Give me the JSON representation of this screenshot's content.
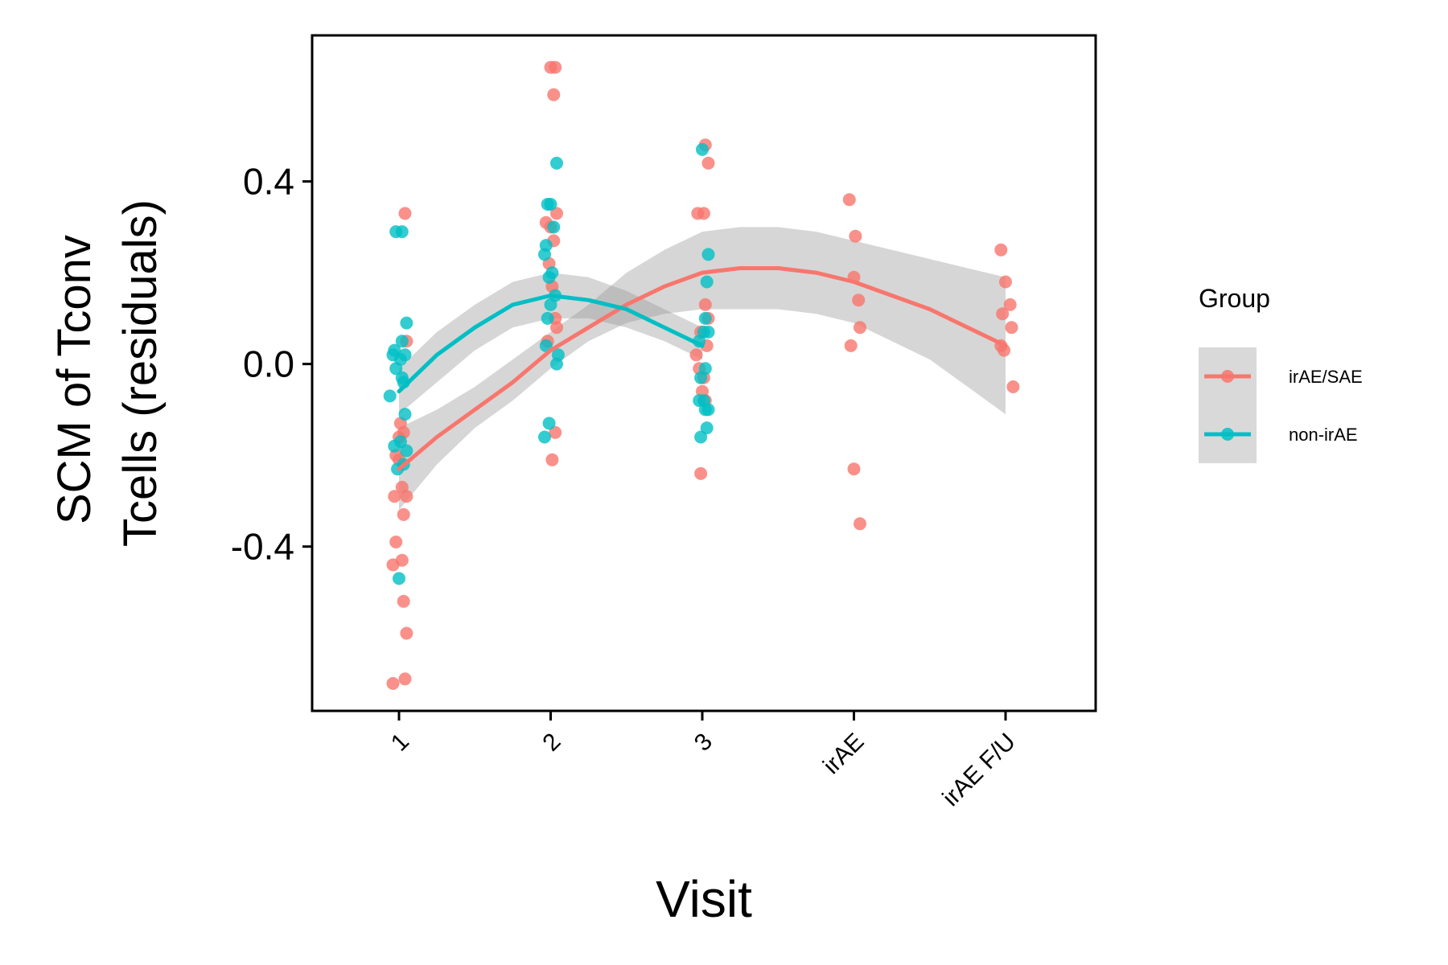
{
  "chart_data": {
    "type": "scatter",
    "title": "",
    "xlabel": "Visit",
    "ylabel_lines": [
      "SCM of Tconv",
      "Tcells (residuals)"
    ],
    "categories": [
      "1",
      "2",
      "3",
      "irAE",
      "irAE F/U"
    ],
    "ylim": [
      -0.76,
      0.72
    ],
    "yticks": [
      -0.4,
      0.0,
      0.4
    ],
    "ytick_labels": [
      "-0.4",
      "0.0",
      "0.4"
    ],
    "grid": false,
    "legend": {
      "title": "Group",
      "position": "right"
    },
    "series": [
      {
        "name": "irAE/SAE",
        "color": "#F8766D",
        "points": [
          [
            0.96,
            -0.7
          ],
          [
            1.04,
            -0.69
          ],
          [
            1.05,
            -0.59
          ],
          [
            1.03,
            -0.52
          ],
          [
            0.96,
            -0.44
          ],
          [
            1.02,
            -0.43
          ],
          [
            0.98,
            -0.39
          ],
          [
            1.03,
            -0.33
          ],
          [
            1.05,
            -0.29
          ],
          [
            0.97,
            -0.29
          ],
          [
            1.02,
            -0.27
          ],
          [
            0.98,
            -0.2
          ],
          [
            1.0,
            -0.16
          ],
          [
            1.03,
            -0.15
          ],
          [
            1.01,
            -0.13
          ],
          [
            1.0,
            -0.21
          ],
          [
            1.04,
            0.33
          ],
          [
            1.05,
            0.05
          ],
          [
            2.0,
            0.65
          ],
          [
            2.03,
            0.65
          ],
          [
            2.02,
            0.59
          ],
          [
            2.04,
            0.33
          ],
          [
            1.97,
            0.31
          ],
          [
            2.0,
            0.3
          ],
          [
            2.02,
            0.27
          ],
          [
            1.99,
            0.22
          ],
          [
            2.01,
            0.17
          ],
          [
            2.03,
            0.1
          ],
          [
            2.04,
            0.08
          ],
          [
            1.98,
            0.05
          ],
          [
            2.03,
            -0.15
          ],
          [
            2.01,
            -0.21
          ],
          [
            3.02,
            0.48
          ],
          [
            3.04,
            0.44
          ],
          [
            2.97,
            0.33
          ],
          [
            3.01,
            0.33
          ],
          [
            3.02,
            0.13
          ],
          [
            3.04,
            0.1
          ],
          [
            2.99,
            0.07
          ],
          [
            3.03,
            0.04
          ],
          [
            2.96,
            0.02
          ],
          [
            2.98,
            -0.01
          ],
          [
            3.01,
            -0.03
          ],
          [
            3.0,
            -0.06
          ],
          [
            3.02,
            -0.08
          ],
          [
            2.99,
            -0.24
          ],
          [
            3.97,
            0.36
          ],
          [
            4.01,
            0.28
          ],
          [
            4.0,
            0.19
          ],
          [
            4.03,
            0.14
          ],
          [
            4.04,
            0.08
          ],
          [
            3.98,
            0.04
          ],
          [
            4.0,
            -0.23
          ],
          [
            4.04,
            -0.35
          ],
          [
            4.97,
            0.25
          ],
          [
            5.0,
            0.18
          ],
          [
            5.03,
            0.13
          ],
          [
            4.98,
            0.11
          ],
          [
            5.04,
            0.08
          ],
          [
            4.97,
            0.04
          ],
          [
            4.99,
            0.03
          ],
          [
            5.05,
            -0.05
          ]
        ],
        "trend_x": [
          1.0,
          1.25,
          1.5,
          1.75,
          2.0,
          2.25,
          2.5,
          2.75,
          3.0,
          3.25,
          3.5,
          3.75,
          4.0,
          4.25,
          4.5,
          4.75,
          5.0
        ],
        "trend_y": [
          -0.23,
          -0.16,
          -0.1,
          -0.04,
          0.03,
          0.08,
          0.13,
          0.17,
          0.2,
          0.21,
          0.21,
          0.2,
          0.18,
          0.15,
          0.12,
          0.08,
          0.04
        ],
        "band_low": [
          -0.32,
          -0.22,
          -0.14,
          -0.08,
          -0.01,
          0.05,
          0.09,
          0.11,
          0.12,
          0.12,
          0.12,
          0.11,
          0.09,
          0.05,
          0.01,
          -0.05,
          -0.11
        ],
        "band_high": [
          -0.14,
          -0.1,
          -0.05,
          0.01,
          0.07,
          0.13,
          0.2,
          0.25,
          0.29,
          0.3,
          0.3,
          0.29,
          0.27,
          0.25,
          0.23,
          0.21,
          0.19
        ]
      },
      {
        "name": "non-irAE",
        "color": "#00BFC4",
        "points": [
          [
            0.98,
            0.29
          ],
          [
            1.02,
            0.29
          ],
          [
            1.05,
            0.09
          ],
          [
            1.02,
            0.05
          ],
          [
            0.97,
            0.03
          ],
          [
            0.96,
            0.02
          ],
          [
            1.01,
            0.01
          ],
          [
            1.04,
            0.02
          ],
          [
            0.98,
            -0.01
          ],
          [
            1.03,
            -0.04
          ],
          [
            1.02,
            -0.03
          ],
          [
            0.94,
            -0.07
          ],
          [
            1.04,
            -0.11
          ],
          [
            1.01,
            -0.17
          ],
          [
            0.97,
            -0.18
          ],
          [
            1.05,
            -0.19
          ],
          [
            1.03,
            -0.22
          ],
          [
            0.99,
            -0.23
          ],
          [
            1.0,
            -0.47
          ],
          [
            2.04,
            0.44
          ],
          [
            1.98,
            0.35
          ],
          [
            2.0,
            0.35
          ],
          [
            2.02,
            0.3
          ],
          [
            1.97,
            0.26
          ],
          [
            1.96,
            0.24
          ],
          [
            2.01,
            0.2
          ],
          [
            1.99,
            0.19
          ],
          [
            2.03,
            0.15
          ],
          [
            2.0,
            0.13
          ],
          [
            1.98,
            0.1
          ],
          [
            2.05,
            0.02
          ],
          [
            2.04,
            0.0
          ],
          [
            1.97,
            0.04
          ],
          [
            1.99,
            -0.13
          ],
          [
            1.96,
            -0.16
          ],
          [
            3.0,
            0.47
          ],
          [
            3.04,
            0.24
          ],
          [
            3.03,
            0.18
          ],
          [
            3.02,
            0.1
          ],
          [
            3.01,
            0.07
          ],
          [
            3.04,
            0.07
          ],
          [
            2.98,
            0.05
          ],
          [
            3.02,
            -0.01
          ],
          [
            2.99,
            -0.03
          ],
          [
            2.98,
            -0.08
          ],
          [
            3.01,
            -0.08
          ],
          [
            3.02,
            -0.1
          ],
          [
            3.04,
            -0.1
          ],
          [
            3.03,
            -0.14
          ],
          [
            2.99,
            -0.16
          ]
        ],
        "trend_x": [
          1.0,
          1.25,
          1.5,
          1.75,
          2.0,
          2.25,
          2.5,
          2.75,
          3.0
        ],
        "trend_y": [
          -0.06,
          0.02,
          0.08,
          0.13,
          0.15,
          0.14,
          0.12,
          0.08,
          0.04
        ],
        "band_low": [
          -0.11,
          -0.04,
          0.03,
          0.08,
          0.1,
          0.1,
          0.08,
          0.05,
          0.01
        ],
        "band_high": [
          -0.01,
          0.07,
          0.13,
          0.18,
          0.2,
          0.19,
          0.16,
          0.12,
          0.08
        ]
      }
    ]
  }
}
